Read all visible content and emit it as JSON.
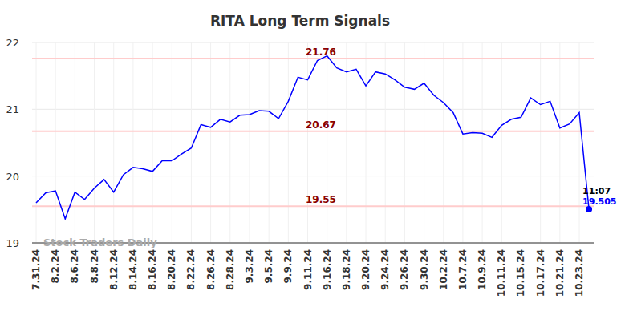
{
  "chart_data": {
    "type": "line",
    "title": "RITA Long Term Signals",
    "watermark": "Stock Traders Daily",
    "categories": [
      "7.31.24",
      null,
      "8.2.24",
      null,
      "8.6.24",
      null,
      "8.8.24",
      null,
      "8.12.24",
      null,
      "8.14.24",
      null,
      "8.16.24",
      null,
      "8.20.24",
      null,
      "8.22.24",
      null,
      "8.26.24",
      null,
      "8.28.24",
      null,
      "9.3.24",
      null,
      "9.5.24",
      null,
      "9.9.24",
      null,
      "9.11.24",
      null,
      "9.16.24",
      null,
      "9.18.24",
      null,
      "9.20.24",
      null,
      "9.24.24",
      null,
      "9.26.24",
      null,
      "9.30.24",
      null,
      "10.2.24",
      null,
      "10.7.24",
      null,
      "10.9.24",
      null,
      "10.11.24",
      null,
      "10.15.24",
      null,
      "10.17.24",
      null,
      "10.21.24",
      null,
      "10.23.24",
      null
    ],
    "values": [
      19.6,
      19.75,
      19.78,
      19.36,
      19.76,
      19.65,
      19.82,
      19.95,
      19.76,
      20.02,
      20.13,
      20.11,
      20.07,
      20.23,
      20.23,
      20.33,
      20.42,
      20.77,
      20.73,
      20.85,
      20.81,
      20.91,
      20.92,
      20.98,
      20.97,
      20.86,
      21.12,
      21.48,
      21.44,
      21.73,
      21.8,
      21.62,
      21.56,
      21.6,
      21.35,
      21.56,
      21.53,
      21.44,
      21.33,
      21.3,
      21.39,
      21.21,
      21.1,
      20.95,
      20.63,
      20.65,
      20.64,
      20.58,
      20.76,
      20.85,
      20.88,
      21.17,
      21.07,
      21.12,
      20.72,
      20.78,
      20.95,
      19.505
    ],
    "color": "#0000ff",
    "reference_lines": [
      21.76,
      20.67,
      19.55
    ],
    "annotations": [
      "11:07",
      19.505
    ],
    "ylim": [
      19,
      22
    ],
    "yticks": [
      19,
      20,
      21,
      22
    ],
    "grid": true
  }
}
